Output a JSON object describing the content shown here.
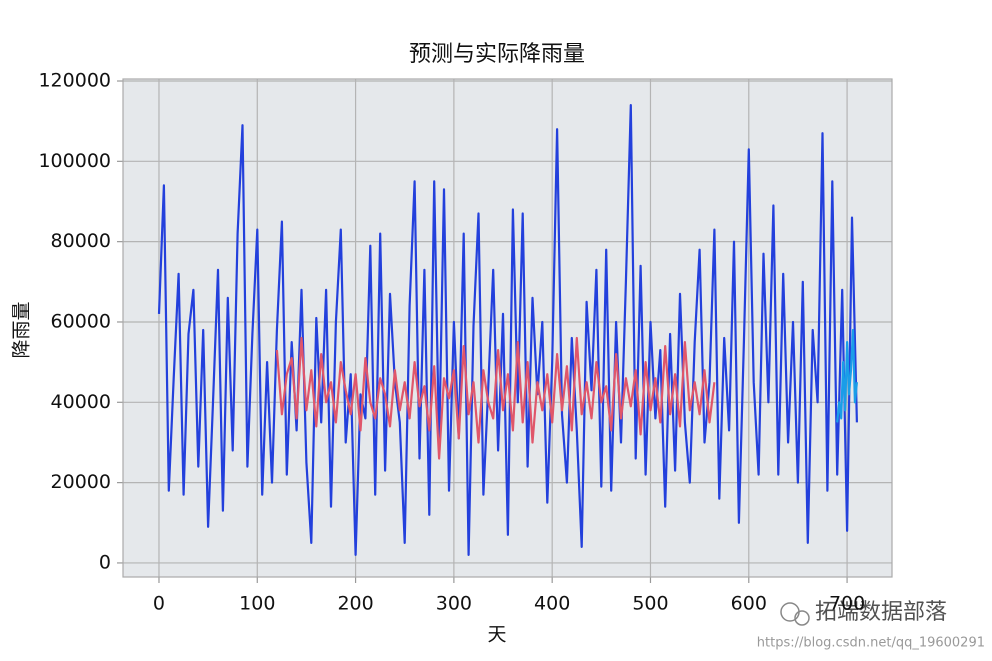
{
  "chart_data": {
    "type": "line",
    "title": "预测与实际降雨量",
    "xlabel": "天",
    "ylabel": "降雨量",
    "xlim": [
      -36.6,
      745.7
    ],
    "ylim": [
      -3500,
      120500
    ],
    "xticks": [
      0,
      100,
      200,
      300,
      400,
      500,
      600,
      700
    ],
    "yticks": [
      0,
      20000,
      40000,
      60000,
      80000,
      100000,
      120000
    ],
    "grid": true,
    "background": "#e5e8eb",
    "grid_color": "#b4b4b4",
    "series": [
      {
        "color": "#2340dc",
        "x": [
          0,
          5,
          10,
          15,
          20,
          25,
          30,
          35,
          40,
          45,
          50,
          55,
          60,
          65,
          70,
          75,
          80,
          85,
          90,
          95,
          100,
          105,
          110,
          115,
          120,
          125,
          130,
          135,
          140,
          145,
          150,
          155,
          160,
          165,
          170,
          175,
          180,
          185,
          190,
          195,
          200,
          205,
          210,
          215,
          220,
          225,
          230,
          235,
          240,
          245,
          250,
          255,
          260,
          265,
          270,
          275,
          280,
          285,
          290,
          295,
          300,
          305,
          310,
          315,
          320,
          325,
          330,
          335,
          340,
          345,
          350,
          355,
          360,
          365,
          370,
          375,
          380,
          385,
          390,
          395,
          400,
          405,
          410,
          415,
          420,
          425,
          430,
          435,
          440,
          445,
          450,
          455,
          460,
          465,
          470,
          475,
          480,
          485,
          490,
          495,
          500,
          505,
          510,
          515,
          520,
          525,
          530,
          535,
          540,
          545,
          550,
          555,
          560,
          565,
          570,
          575,
          580,
          585,
          590,
          595,
          600,
          605,
          610,
          615,
          620,
          625,
          630,
          635,
          640,
          645,
          650,
          655,
          660,
          665,
          670,
          675,
          680,
          685,
          690,
          695,
          700,
          705,
          710
        ],
        "values": [
          62000,
          94000,
          18000,
          46000,
          72000,
          17000,
          57000,
          68000,
          24000,
          58000,
          9000,
          40000,
          73000,
          13000,
          66000,
          28000,
          82000,
          109000,
          24000,
          57000,
          83000,
          17000,
          50000,
          20000,
          58000,
          85000,
          22000,
          55000,
          33000,
          68000,
          25000,
          5000,
          61000,
          35000,
          68000,
          14000,
          60000,
          83000,
          30000,
          47000,
          2000,
          42000,
          36000,
          79000,
          17000,
          82000,
          23000,
          67000,
          45000,
          35000,
          5000,
          64000,
          95000,
          26000,
          73000,
          12000,
          95000,
          29000,
          93000,
          18000,
          60000,
          31000,
          82000,
          2000,
          59000,
          87000,
          17000,
          44000,
          73000,
          28000,
          62000,
          7000,
          88000,
          40000,
          87000,
          24000,
          66000,
          42000,
          60000,
          15000,
          50000,
          108000,
          37000,
          20000,
          56000,
          33000,
          4000,
          65000,
          43000,
          73000,
          19000,
          78000,
          18000,
          60000,
          30000,
          70000,
          114000,
          26000,
          74000,
          22000,
          60000,
          36000,
          53000,
          14000,
          57000,
          23000,
          67000,
          35000,
          20000,
          55000,
          78000,
          30000,
          45000,
          83000,
          16000,
          56000,
          33000,
          80000,
          10000,
          55000,
          103000,
          45000,
          22000,
          77000,
          40000,
          89000,
          22000,
          72000,
          30000,
          60000,
          20000,
          70000,
          5000,
          58000,
          40000,
          107000,
          18000,
          95000,
          22000,
          68000,
          8000,
          86000,
          35000
        ]
      },
      {
        "color": "#e0566a",
        "x": [
          120,
          125,
          130,
          135,
          140,
          145,
          150,
          155,
          160,
          165,
          170,
          175,
          180,
          185,
          190,
          195,
          200,
          205,
          210,
          215,
          220,
          225,
          230,
          235,
          240,
          245,
          250,
          255,
          260,
          265,
          270,
          275,
          280,
          285,
          290,
          295,
          300,
          305,
          310,
          315,
          320,
          325,
          330,
          335,
          340,
          345,
          350,
          355,
          360,
          365,
          370,
          375,
          380,
          385,
          390,
          395,
          400,
          405,
          410,
          415,
          420,
          425,
          430,
          435,
          440,
          445,
          450,
          455,
          460,
          465,
          470,
          475,
          480,
          485,
          490,
          495,
          500,
          505,
          510,
          515,
          520,
          525,
          530,
          535,
          540,
          545,
          550,
          555,
          560,
          565
        ],
        "values": [
          53000,
          37000,
          47000,
          51000,
          36000,
          56000,
          38000,
          48000,
          34000,
          52000,
          40000,
          45000,
          35000,
          50000,
          43000,
          37000,
          47000,
          33000,
          51000,
          40000,
          36000,
          46000,
          42000,
          34000,
          48000,
          38000,
          45000,
          36000,
          50000,
          39000,
          44000,
          33000,
          49000,
          26000,
          46000,
          41000,
          48000,
          31000,
          54000,
          37000,
          45000,
          30000,
          48000,
          40000,
          36000,
          53000,
          38000,
          47000,
          33000,
          55000,
          35000,
          50000,
          30000,
          45000,
          38000,
          47000,
          35000,
          52000,
          38000,
          49000,
          33000,
          56000,
          37000,
          45000,
          36000,
          50000,
          40000,
          44000,
          33000,
          52000,
          36000,
          46000,
          39000,
          48000,
          32000,
          50000,
          38000,
          46000,
          35000,
          54000,
          37000,
          47000,
          34000,
          55000,
          38000,
          45000,
          37000,
          48000,
          35000,
          45000
        ]
      },
      {
        "color": "#1a9de8",
        "x": [
          690,
          692,
          694,
          696,
          698,
          700,
          702,
          704,
          706,
          708,
          710
        ],
        "values": [
          35000,
          40000,
          36000,
          50000,
          38000,
          55000,
          42000,
          48000,
          58000,
          40000,
          45000
        ]
      }
    ]
  },
  "watermark": {
    "brand": "拓端数据部落",
    "url": "https://blog.csdn.net/qq_19600291"
  }
}
